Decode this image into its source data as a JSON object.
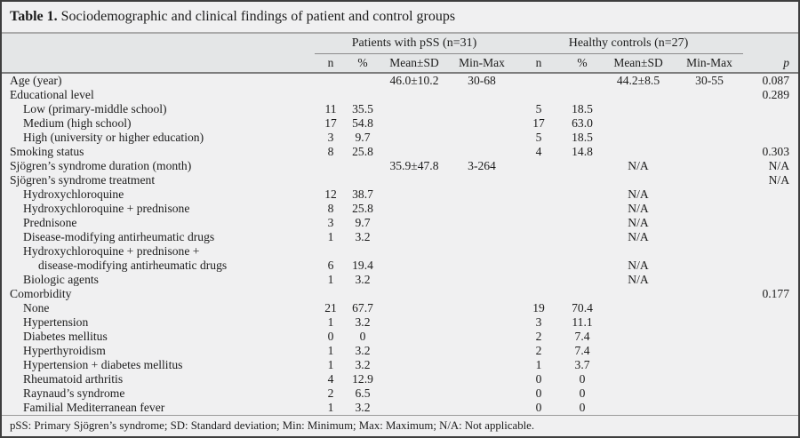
{
  "title": {
    "label": "Table 1.",
    "caption": "Sociodemographic and clinical findings of patient and control groups"
  },
  "header": {
    "patients_group": "Patients with pSS (n=31)",
    "controls_group": "Healthy controls (n=27)",
    "subcols": [
      "n",
      "%",
      "Mean±SD",
      "Min-Max",
      "n",
      "%",
      "Mean±SD",
      "Min-Max"
    ],
    "p_label": "p"
  },
  "rows": [
    {
      "label": "Age (year)",
      "indent": 0,
      "cells": [
        "",
        "",
        "46.0±10.2",
        "30-68",
        "",
        "",
        "44.2±8.5",
        "30-55",
        "0.087"
      ]
    },
    {
      "label": "Educational level",
      "indent": 0,
      "cells": [
        "",
        "",
        "",
        "",
        "",
        "",
        "",
        "",
        "0.289"
      ]
    },
    {
      "label": "Low (primary-middle school)",
      "indent": 1,
      "cells": [
        "11",
        "35.5",
        "",
        "",
        "5",
        "18.5",
        "",
        "",
        ""
      ]
    },
    {
      "label": "Medium (high school)",
      "indent": 1,
      "cells": [
        "17",
        "54.8",
        "",
        "",
        "17",
        "63.0",
        "",
        "",
        ""
      ]
    },
    {
      "label": "High (university or higher education)",
      "indent": 1,
      "cells": [
        "3",
        "9.7",
        "",
        "",
        "5",
        "18.5",
        "",
        "",
        ""
      ]
    },
    {
      "label": "Smoking status",
      "indent": 0,
      "cells": [
        "8",
        "25.8",
        "",
        "",
        "4",
        "14.8",
        "",
        "",
        "0.303"
      ]
    },
    {
      "label": "Sjögren’s syndrome duration (month)",
      "indent": 0,
      "cells": [
        "",
        "",
        "35.9±47.8",
        "3-264",
        "",
        "",
        "N/A",
        "",
        "N/A"
      ]
    },
    {
      "label": "Sjögren’s syndrome treatment",
      "indent": 0,
      "cells": [
        "",
        "",
        "",
        "",
        "",
        "",
        "",
        "",
        "N/A"
      ]
    },
    {
      "label": "Hydroxychloroquine",
      "indent": 1,
      "cells": [
        "12",
        "38.7",
        "",
        "",
        "",
        "",
        "N/A",
        "",
        ""
      ]
    },
    {
      "label": "Hydroxychloroquine + prednisone",
      "indent": 1,
      "cells": [
        "8",
        "25.8",
        "",
        "",
        "",
        "",
        "N/A",
        "",
        ""
      ]
    },
    {
      "label": "Prednisone",
      "indent": 1,
      "cells": [
        "3",
        "9.7",
        "",
        "",
        "",
        "",
        "N/A",
        "",
        ""
      ]
    },
    {
      "label": "Disease-modifying antirheumatic drugs",
      "indent": 1,
      "cells": [
        "1",
        "3.2",
        "",
        "",
        "",
        "",
        "N/A",
        "",
        ""
      ]
    },
    {
      "label": "Hydroxychloroquine + prednisone +",
      "indent": 1,
      "cells": [
        "",
        "",
        "",
        "",
        "",
        "",
        "",
        "",
        ""
      ]
    },
    {
      "label": "disease-modifying antirheumatic drugs",
      "indent": 2,
      "cells": [
        "6",
        "19.4",
        "",
        "",
        "",
        "",
        "N/A",
        "",
        ""
      ]
    },
    {
      "label": "Biologic agents",
      "indent": 1,
      "cells": [
        "1",
        "3.2",
        "",
        "",
        "",
        "",
        "N/A",
        "",
        ""
      ]
    },
    {
      "label": "Comorbidity",
      "indent": 0,
      "cells": [
        "",
        "",
        "",
        "",
        "",
        "",
        "",
        "",
        "0.177"
      ]
    },
    {
      "label": "None",
      "indent": 1,
      "cells": [
        "21",
        "67.7",
        "",
        "",
        "19",
        "70.4",
        "",
        "",
        ""
      ]
    },
    {
      "label": "Hypertension",
      "indent": 1,
      "cells": [
        "1",
        "3.2",
        "",
        "",
        "3",
        "11.1",
        "",
        "",
        ""
      ]
    },
    {
      "label": "Diabetes mellitus",
      "indent": 1,
      "cells": [
        "0",
        "0",
        "",
        "",
        "2",
        "7.4",
        "",
        "",
        ""
      ]
    },
    {
      "label": "Hyperthyroidism",
      "indent": 1,
      "cells": [
        "1",
        "3.2",
        "",
        "",
        "2",
        "7.4",
        "",
        "",
        ""
      ]
    },
    {
      "label": "Hypertension + diabetes mellitus",
      "indent": 1,
      "cells": [
        "1",
        "3.2",
        "",
        "",
        "1",
        "3.7",
        "",
        "",
        ""
      ]
    },
    {
      "label": "Rheumatoid arthritis",
      "indent": 1,
      "cells": [
        "4",
        "12.9",
        "",
        "",
        "0",
        "0",
        "",
        "",
        ""
      ]
    },
    {
      "label": "Raynaud’s syndrome",
      "indent": 1,
      "cells": [
        "2",
        "6.5",
        "",
        "",
        "0",
        "0",
        "",
        "",
        ""
      ]
    },
    {
      "label": "Familial Mediterranean fever",
      "indent": 1,
      "cells": [
        "1",
        "3.2",
        "",
        "",
        "0",
        "0",
        "",
        "",
        ""
      ]
    }
  ],
  "footnote": "pSS: Primary Sjögren’s syndrome; SD: Standard deviation; Min: Minimum; Max: Maximum; N/A: Not applicable."
}
